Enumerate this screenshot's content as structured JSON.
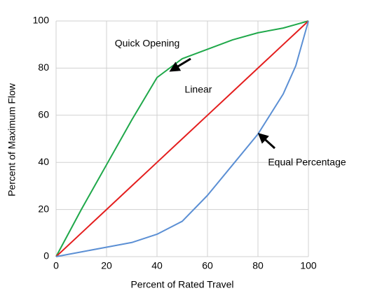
{
  "chart_data": {
    "type": "line",
    "x_label": "Percent of Rated Travel",
    "y_label": "Percent of Maximum Flow",
    "x": [
      0,
      10,
      20,
      30,
      40,
      50,
      60,
      70,
      80,
      90,
      95,
      100
    ],
    "series": [
      {
        "name": "Quick Opening",
        "color": "#1fa84a",
        "values": [
          0,
          20,
          39,
          58,
          76,
          84,
          88,
          92,
          95,
          97,
          98.5,
          100
        ]
      },
      {
        "name": "Linear",
        "color": "#e41e1e",
        "values": [
          0,
          10,
          20,
          30,
          40,
          50,
          60,
          70,
          80,
          90,
          95,
          100
        ]
      },
      {
        "name": "Equal Percentage",
        "color": "#5b8fd4",
        "values": [
          0,
          2,
          4,
          6,
          9.5,
          15,
          26,
          39,
          52,
          69,
          81,
          100
        ]
      }
    ],
    "xlim": [
      0,
      100
    ],
    "xticks": [
      0,
      20,
      40,
      60,
      80,
      100
    ],
    "ylim": [
      0,
      100
    ],
    "yticks": [
      0,
      20,
      40,
      60,
      80,
      100
    ],
    "grid": true
  }
}
